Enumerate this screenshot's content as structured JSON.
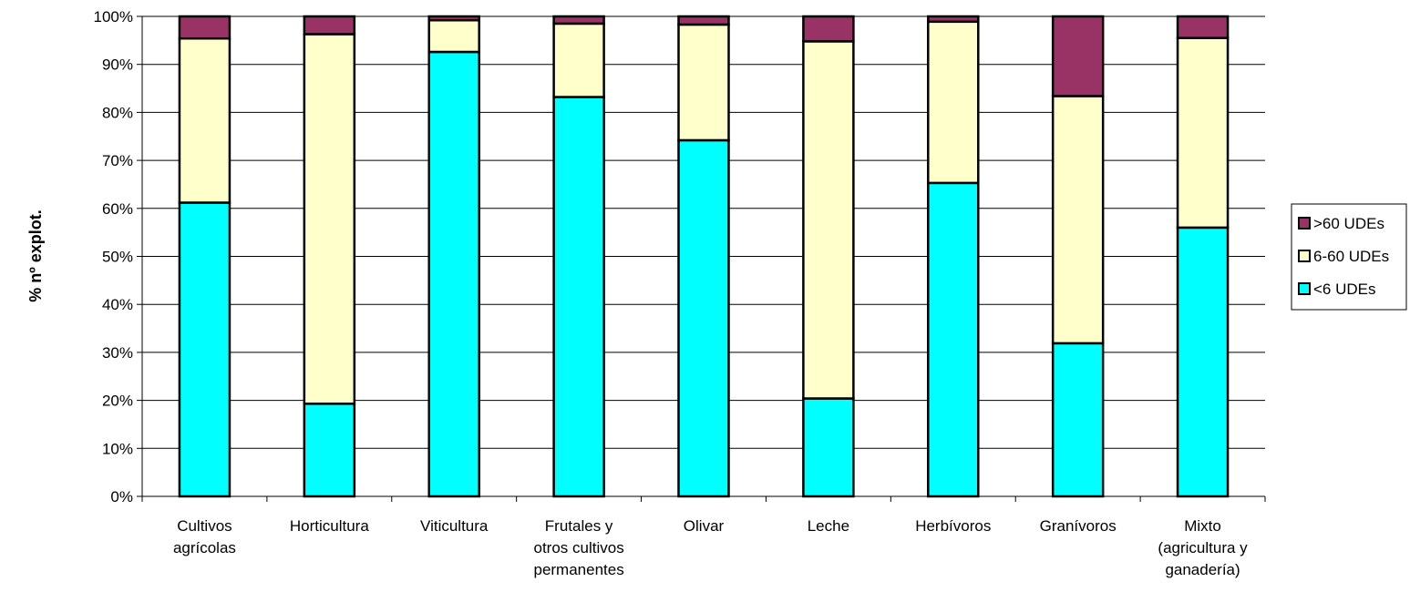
{
  "chart_data": {
    "type": "bar",
    "stacked": true,
    "percent": true,
    "ylabel": "% nº explot.",
    "ylim": [
      0,
      100
    ],
    "yticks": [
      "0%",
      "10%",
      "20%",
      "30%",
      "40%",
      "50%",
      "60%",
      "70%",
      "80%",
      "90%",
      "100%"
    ],
    "categories": [
      [
        "Cultivos",
        "agrícolas"
      ],
      [
        "Horticultura"
      ],
      [
        "Viticultura"
      ],
      [
        "Frutales y",
        "otros cultivos",
        "permanentes"
      ],
      [
        "Olivar"
      ],
      [
        "Leche"
      ],
      [
        "Herbívoros"
      ],
      [
        "Granívoros"
      ],
      [
        "Mixto",
        "(agricultura y",
        "ganadería)"
      ]
    ],
    "series": [
      {
        "name": "<6 UDEs",
        "color": "#00FFFF",
        "values": [
          61.2,
          19.3,
          92.6,
          83.2,
          74.2,
          20.4,
          65.3,
          31.9,
          56.0
        ]
      },
      {
        "name": "6-60 UDEs",
        "color": "#FFFFCC",
        "values": [
          34.2,
          77.0,
          6.6,
          15.3,
          24.1,
          74.4,
          33.6,
          51.5,
          39.5
        ]
      },
      {
        "name": ">60 UDEs",
        "color": "#993366",
        "values": [
          4.6,
          3.7,
          0.8,
          1.5,
          1.7,
          5.2,
          1.1,
          16.6,
          4.5
        ]
      }
    ],
    "legend": {
      "position": "right",
      "order": [
        ">60 UDEs",
        "6-60 UDEs",
        "<6 UDEs"
      ]
    },
    "grid": true
  }
}
